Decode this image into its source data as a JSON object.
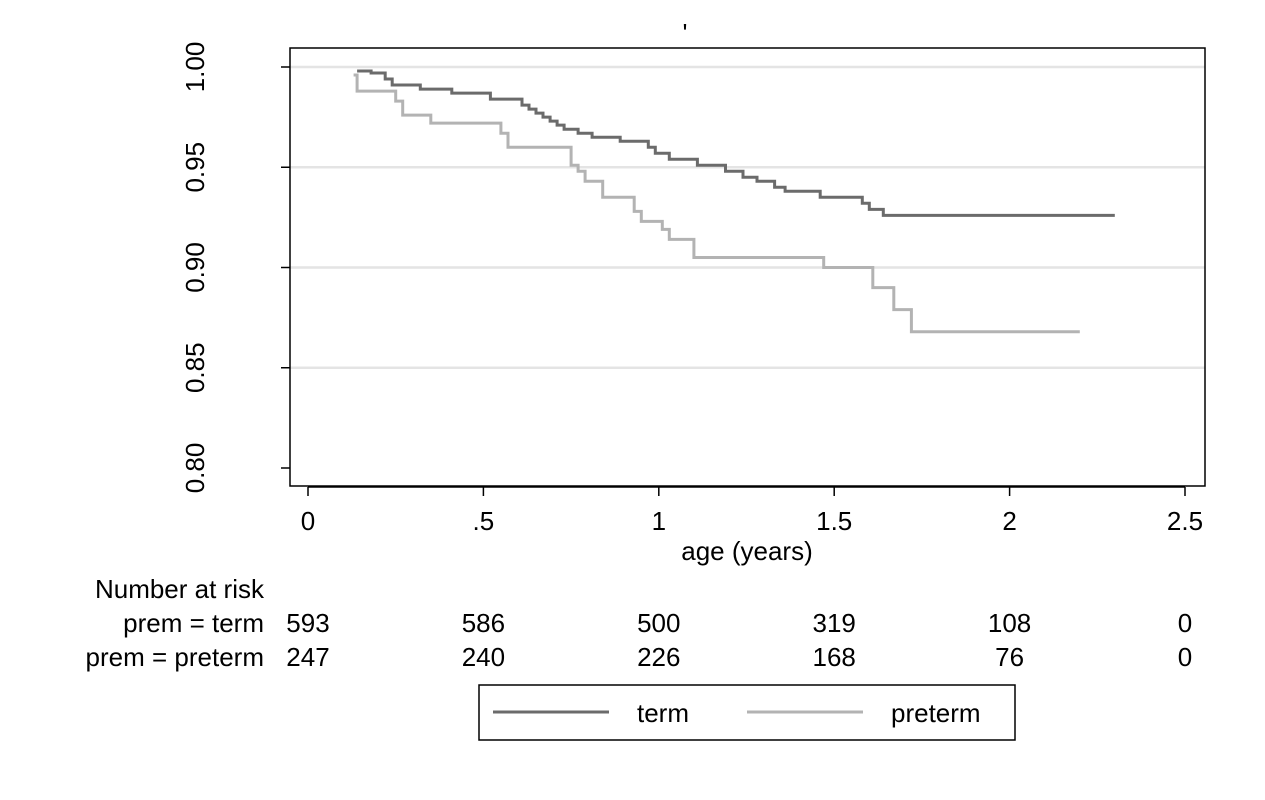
{
  "chart_data": {
    "type": "line",
    "title": "'",
    "xlabel": "age (years)",
    "ylabel": "",
    "xlim": [
      0,
      2.5
    ],
    "ylim": [
      0.8,
      1.0
    ],
    "x_ticks": [
      0,
      0.5,
      1,
      1.5,
      2,
      2.5
    ],
    "x_tick_labels": [
      "0",
      ".5",
      "1",
      "1.5",
      "2",
      "2.5"
    ],
    "y_ticks": [
      0.8,
      0.85,
      0.9,
      0.95,
      1.0
    ],
    "y_tick_labels": [
      "0.80",
      "0.85",
      "0.90",
      "0.95",
      "1.00"
    ],
    "grid": "horizontal",
    "legend_placement": "bottom",
    "series": [
      {
        "name": "term",
        "color": "#6b6b6b",
        "x": [
          0.14,
          0.18,
          0.22,
          0.24,
          0.32,
          0.41,
          0.52,
          0.61,
          0.63,
          0.65,
          0.67,
          0.69,
          0.71,
          0.73,
          0.77,
          0.81,
          0.89,
          0.97,
          0.99,
          1.03,
          1.11,
          1.19,
          1.24,
          1.28,
          1.33,
          1.36,
          1.46,
          1.58,
          1.6,
          1.64,
          2.3
        ],
        "y": [
          0.998,
          0.997,
          0.994,
          0.991,
          0.989,
          0.987,
          0.984,
          0.981,
          0.979,
          0.977,
          0.975,
          0.973,
          0.971,
          0.969,
          0.967,
          0.965,
          0.963,
          0.96,
          0.957,
          0.954,
          0.951,
          0.948,
          0.945,
          0.943,
          0.94,
          0.938,
          0.935,
          0.932,
          0.929,
          0.926,
          0.926
        ]
      },
      {
        "name": "preterm",
        "color": "#b3b3b3",
        "x": [
          0.13,
          0.14,
          0.25,
          0.27,
          0.35,
          0.55,
          0.57,
          0.75,
          0.77,
          0.79,
          0.84,
          0.93,
          0.95,
          1.01,
          1.03,
          1.1,
          1.47,
          1.61,
          1.67,
          1.72,
          2.2
        ],
        "y": [
          0.996,
          0.988,
          0.983,
          0.976,
          0.972,
          0.967,
          0.96,
          0.951,
          0.948,
          0.943,
          0.935,
          0.928,
          0.923,
          0.919,
          0.914,
          0.905,
          0.9,
          0.89,
          0.879,
          0.868,
          0.868
        ]
      }
    ],
    "risk_table": {
      "title": "Number at risk",
      "rows": [
        {
          "label": "prem = term",
          "values": [
            "593",
            "586",
            "500",
            "319",
            "108",
            "0"
          ]
        },
        {
          "label": "prem = preterm",
          "values": [
            "247",
            "240",
            "226",
            "168",
            "76",
            "0"
          ]
        }
      ]
    },
    "colors": {
      "axis": "#000000",
      "grid": "#e4e4e4"
    }
  }
}
